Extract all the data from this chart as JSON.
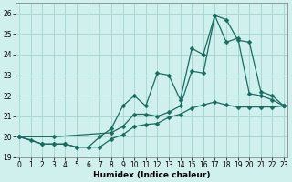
{
  "xlabel": "Humidex (Indice chaleur)",
  "bg_color": "#cff0ec",
  "grid_color": "#aad8d3",
  "line_color": "#1a6b60",
  "xlim": [
    -0.3,
    23.3
  ],
  "ylim": [
    19.0,
    26.5
  ],
  "yticks": [
    19,
    20,
    21,
    22,
    23,
    24,
    25,
    26
  ],
  "xticks": [
    0,
    1,
    2,
    3,
    4,
    5,
    6,
    7,
    8,
    9,
    10,
    11,
    12,
    13,
    14,
    15,
    16,
    17,
    18,
    19,
    20,
    21,
    22,
    23
  ],
  "line1_x": [
    0,
    1,
    2,
    3,
    4,
    5,
    6,
    7,
    8,
    9,
    10,
    11,
    12,
    13,
    14,
    15,
    16,
    17,
    18,
    19,
    20,
    21,
    22,
    23
  ],
  "line1_y": [
    20.0,
    19.85,
    19.65,
    19.65,
    19.65,
    19.5,
    19.5,
    19.5,
    19.9,
    20.1,
    20.5,
    20.6,
    20.65,
    20.95,
    21.1,
    21.4,
    21.55,
    21.7,
    21.55,
    21.45,
    21.45,
    21.45,
    21.45,
    21.5
  ],
  "line2_x": [
    0,
    2,
    3,
    4,
    5,
    6,
    7,
    8,
    9,
    10,
    11,
    12,
    13,
    14,
    15,
    16,
    17,
    18,
    19,
    20,
    21,
    22,
    23
  ],
  "line2_y": [
    20.0,
    19.65,
    19.65,
    19.65,
    19.5,
    19.5,
    20.0,
    20.4,
    21.5,
    22.0,
    21.5,
    23.1,
    23.0,
    21.8,
    24.3,
    24.0,
    25.9,
    24.6,
    24.8,
    22.1,
    22.0,
    21.8,
    21.5
  ],
  "line3_x": [
    0,
    3,
    8,
    9,
    10,
    11,
    12,
    13,
    14,
    15,
    16,
    17,
    18,
    19,
    20,
    21,
    22,
    23
  ],
  "line3_y": [
    20.0,
    20.0,
    20.2,
    20.5,
    21.1,
    21.1,
    21.0,
    21.2,
    21.5,
    23.2,
    23.1,
    25.9,
    25.7,
    24.7,
    24.6,
    22.2,
    22.0,
    21.5
  ]
}
